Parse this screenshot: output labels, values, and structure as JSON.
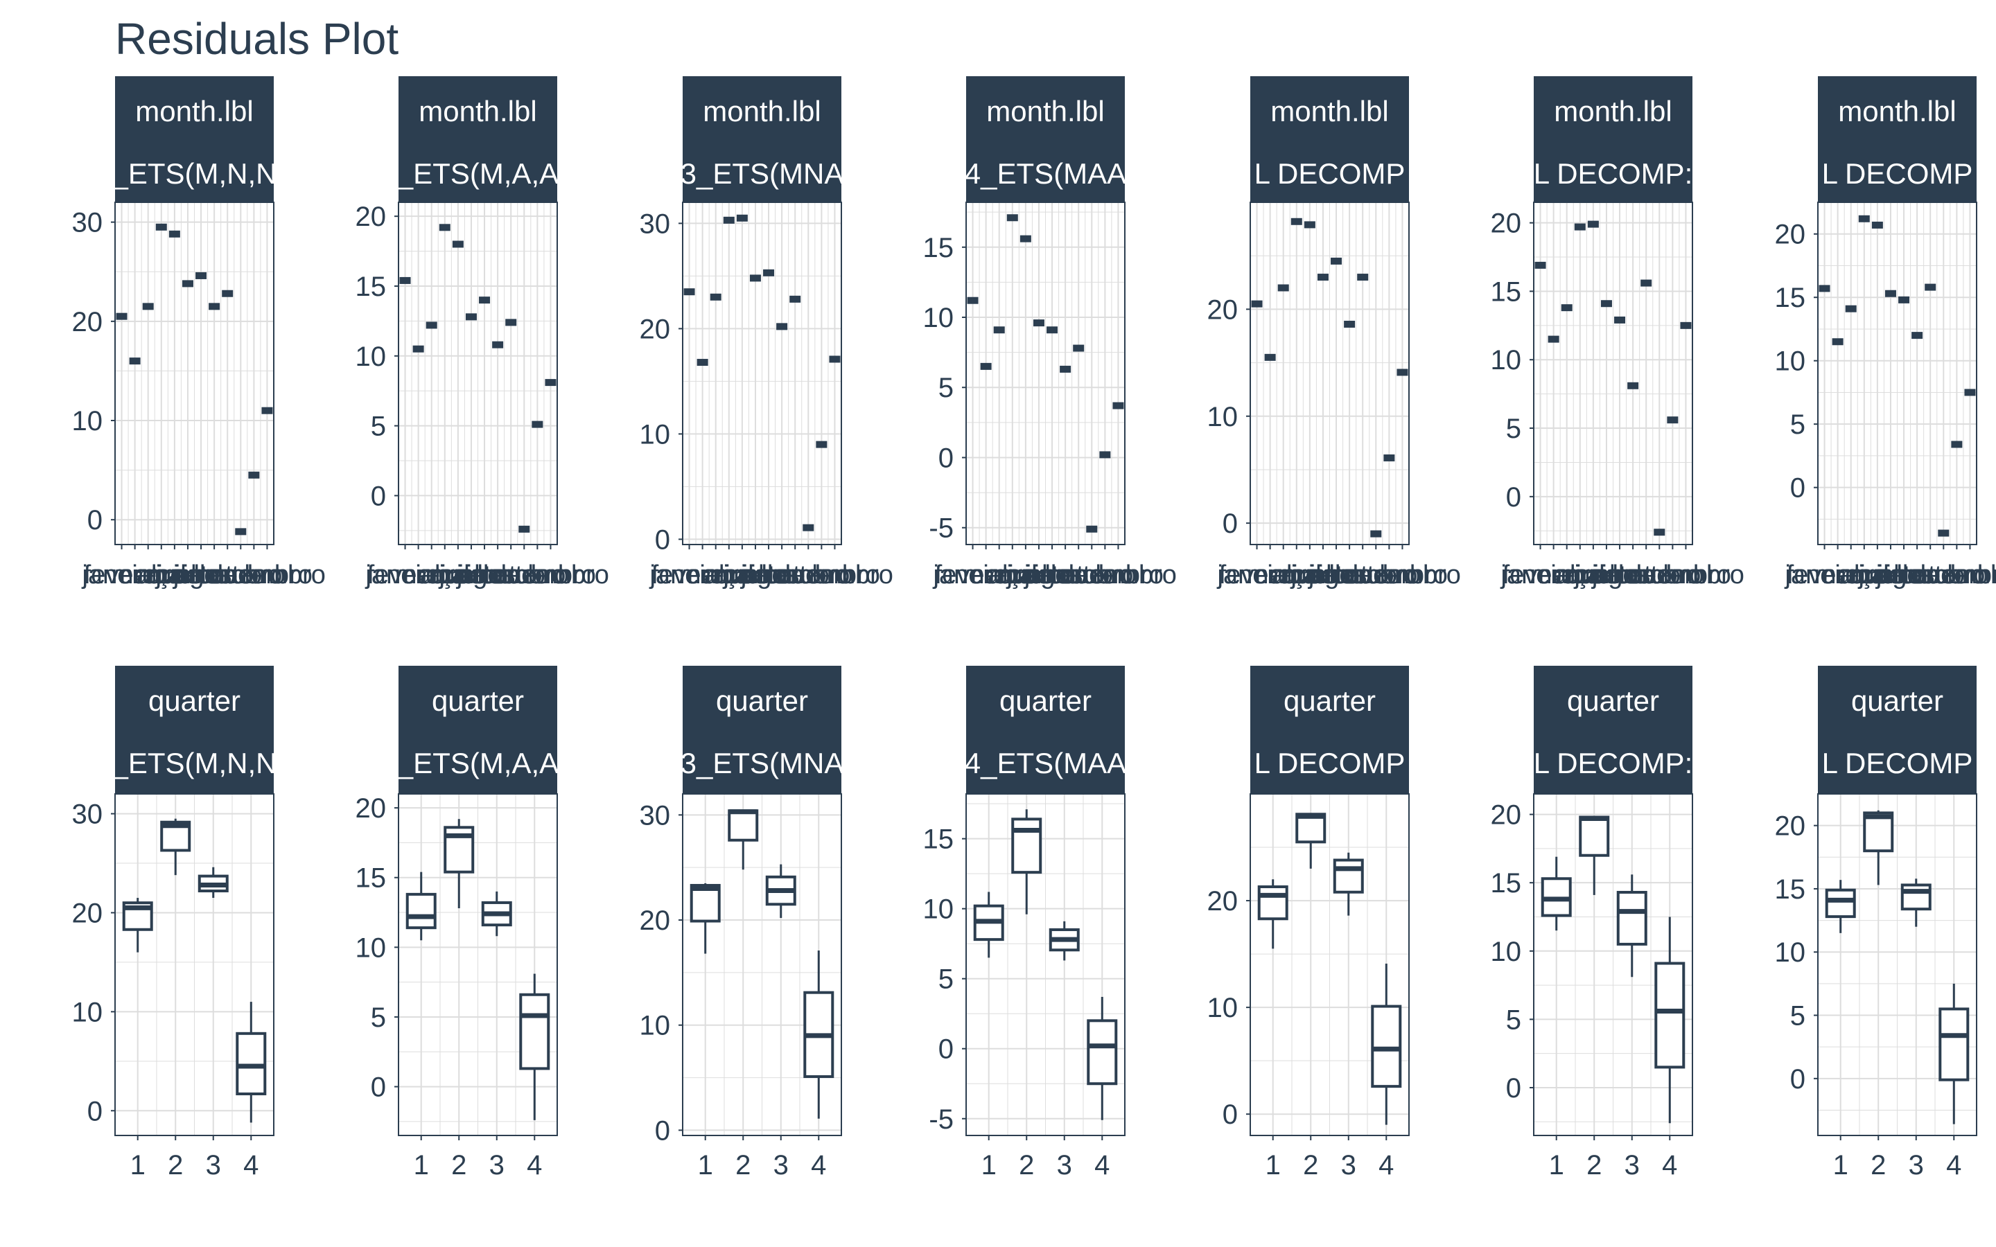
{
  "title": "Residuals Plot",
  "colors": {
    "strip_bg": "#2c3e50",
    "strip_text": "#ffffff",
    "ink": "#2c3e50",
    "grid": "#dddddd",
    "axis_text": "#2c3e50"
  },
  "chart_data": [
    {
      "type": "scatter",
      "row": 0,
      "col": 0,
      "strip": [
        "month.lbl",
        "_ETS(M,N,N"
      ],
      "xtick_labels": [
        "janeiro",
        "fevereiro",
        "março",
        "abril",
        "maio",
        "junho",
        "julho",
        "agosto",
        "setembro",
        "outubro",
        "novembro",
        "dezembro"
      ],
      "yticks": [
        0,
        10,
        20,
        30
      ],
      "ylim": [
        -2.5,
        32
      ],
      "x": [
        1,
        2,
        3,
        4,
        5,
        6,
        7,
        8,
        9,
        10,
        11,
        12
      ],
      "y": [
        20.5,
        16.0,
        21.5,
        29.5,
        28.8,
        23.8,
        24.6,
        21.5,
        22.8,
        -1.2,
        4.5,
        11.0
      ]
    },
    {
      "type": "scatter",
      "row": 0,
      "col": 1,
      "strip": [
        "month.lbl",
        "_ETS(M,A,A"
      ],
      "xtick_labels": [
        "janeiro",
        "fevereiro",
        "março",
        "abril",
        "maio",
        "junho",
        "julho",
        "agosto",
        "setembro",
        "outubro",
        "novembro",
        "dezembro"
      ],
      "yticks": [
        0,
        5,
        10,
        15,
        20
      ],
      "ylim": [
        -3.5,
        21
      ],
      "x": [
        1,
        2,
        3,
        4,
        5,
        6,
        7,
        8,
        9,
        10,
        11,
        12
      ],
      "y": [
        15.4,
        10.5,
        12.2,
        19.2,
        18.0,
        12.8,
        14.0,
        10.8,
        12.4,
        -2.4,
        5.1,
        8.1
      ]
    },
    {
      "type": "scatter",
      "row": 0,
      "col": 2,
      "strip": [
        "month.lbl",
        "3_ETS(MNA"
      ],
      "xtick_labels": [
        "janeiro",
        "fevereiro",
        "março",
        "abril",
        "maio",
        "junho",
        "julho",
        "agosto",
        "setembro",
        "outubro",
        "novembro",
        "dezembro"
      ],
      "yticks": [
        0,
        10,
        20,
        30
      ],
      "ylim": [
        -0.5,
        32
      ],
      "x": [
        1,
        2,
        3,
        4,
        5,
        6,
        7,
        8,
        9,
        10,
        11,
        12
      ],
      "y": [
        23.5,
        16.8,
        23.0,
        30.3,
        30.5,
        24.8,
        25.3,
        20.2,
        22.8,
        1.1,
        9.0,
        17.1
      ]
    },
    {
      "type": "scatter",
      "row": 0,
      "col": 3,
      "strip": [
        "month.lbl",
        "4_ETS(MAA"
      ],
      "xtick_labels": [
        "janeiro",
        "fevereiro",
        "março",
        "abril",
        "maio",
        "junho",
        "julho",
        "agosto",
        "setembro",
        "outubro",
        "novembro",
        "dezembro"
      ],
      "yticks": [
        -5,
        0,
        5,
        10,
        15
      ],
      "ylim": [
        -6.2,
        18.2
      ],
      "x": [
        1,
        2,
        3,
        4,
        5,
        6,
        7,
        8,
        9,
        10,
        11,
        12
      ],
      "y": [
        11.2,
        6.5,
        9.1,
        17.1,
        15.6,
        9.6,
        9.1,
        6.3,
        7.8,
        -5.1,
        0.2,
        3.7
      ]
    },
    {
      "type": "scatter",
      "row": 0,
      "col": 4,
      "strip": [
        "month.lbl",
        "L DECOMP"
      ],
      "xtick_labels": [
        "janeiro",
        "fevereiro",
        "março",
        "abril",
        "maio",
        "junho",
        "julho",
        "agosto",
        "setembro",
        "outubro",
        "novembro",
        "dezembro"
      ],
      "yticks": [
        0,
        10,
        20
      ],
      "ylim": [
        -2,
        30
      ],
      "x": [
        1,
        2,
        3,
        4,
        5,
        6,
        7,
        8,
        9,
        10,
        11,
        12
      ],
      "y": [
        20.5,
        15.5,
        22.0,
        28.2,
        27.9,
        23.0,
        24.5,
        18.6,
        23.0,
        -1.0,
        6.1,
        14.1
      ]
    },
    {
      "type": "scatter",
      "row": 0,
      "col": 5,
      "strip": [
        "month.lbl",
        "L DECOMP:"
      ],
      "xtick_labels": [
        "janeiro",
        "fevereiro",
        "março",
        "abril",
        "maio",
        "junho",
        "julho",
        "agosto",
        "setembro",
        "outubro",
        "novembro",
        "dezembro"
      ],
      "yticks": [
        0,
        5,
        10,
        15,
        20
      ],
      "ylim": [
        -3.5,
        21.5
      ],
      "x": [
        1,
        2,
        3,
        4,
        5,
        6,
        7,
        8,
        9,
        10,
        11,
        12
      ],
      "y": [
        16.9,
        11.5,
        13.8,
        19.7,
        19.9,
        14.1,
        12.9,
        8.1,
        15.6,
        -2.6,
        5.6,
        12.5
      ]
    },
    {
      "type": "scatter",
      "row": 0,
      "col": 6,
      "strip": [
        "month.lbl",
        "L DECOMP"
      ],
      "xtick_labels": [
        "janeiro",
        "fevereiro",
        "março",
        "abril",
        "maio",
        "junho",
        "julho",
        "agosto",
        "setembro",
        "outubro",
        "novembro",
        "dezembro"
      ],
      "yticks": [
        0,
        5,
        10,
        15,
        20
      ],
      "ylim": [
        -4.5,
        22.5
      ],
      "x": [
        1,
        2,
        3,
        4,
        5,
        6,
        7,
        8,
        9,
        10,
        11,
        12
      ],
      "y": [
        15.7,
        11.5,
        14.1,
        21.2,
        20.7,
        15.3,
        14.8,
        12.0,
        15.8,
        -3.6,
        3.4,
        7.5
      ]
    },
    {
      "type": "box",
      "row": 1,
      "col": 0,
      "strip": [
        "quarter",
        "_ETS(M,N,N"
      ],
      "categories": [
        "1",
        "2",
        "3",
        "4"
      ],
      "yticks": [
        0,
        10,
        20,
        30
      ],
      "ylim": [
        -2.5,
        32
      ],
      "boxes": [
        {
          "min": 16.0,
          "q1": 18.3,
          "median": 20.5,
          "q3": 21.0,
          "max": 21.5
        },
        {
          "min": 23.8,
          "q1": 26.3,
          "median": 28.8,
          "q3": 29.15,
          "max": 29.5
        },
        {
          "min": 21.5,
          "q1": 22.2,
          "median": 22.8,
          "q3": 23.7,
          "max": 24.6
        },
        {
          "min": -1.2,
          "q1": 1.7,
          "median": 4.5,
          "q3": 7.8,
          "max": 11.0
        }
      ]
    },
    {
      "type": "box",
      "row": 1,
      "col": 1,
      "strip": [
        "quarter",
        "_ETS(M,A,A"
      ],
      "categories": [
        "1",
        "2",
        "3",
        "4"
      ],
      "yticks": [
        0,
        5,
        10,
        15,
        20
      ],
      "ylim": [
        -3.5,
        21
      ],
      "boxes": [
        {
          "min": 10.5,
          "q1": 11.4,
          "median": 12.2,
          "q3": 13.8,
          "max": 15.4
        },
        {
          "min": 12.8,
          "q1": 15.4,
          "median": 18.0,
          "q3": 18.6,
          "max": 19.2
        },
        {
          "min": 10.8,
          "q1": 11.6,
          "median": 12.4,
          "q3": 13.2,
          "max": 14.0
        },
        {
          "min": -2.4,
          "q1": 1.3,
          "median": 5.1,
          "q3": 6.6,
          "max": 8.1
        }
      ]
    },
    {
      "type": "box",
      "row": 1,
      "col": 2,
      "strip": [
        "quarter",
        "3_ETS(MNA"
      ],
      "categories": [
        "1",
        "2",
        "3",
        "4"
      ],
      "yticks": [
        0,
        10,
        20,
        30
      ],
      "ylim": [
        -0.5,
        32
      ],
      "boxes": [
        {
          "min": 16.8,
          "q1": 19.9,
          "median": 23.0,
          "q3": 23.3,
          "max": 23.5
        },
        {
          "min": 24.8,
          "q1": 27.6,
          "median": 30.3,
          "q3": 30.4,
          "max": 30.5
        },
        {
          "min": 20.2,
          "q1": 21.5,
          "median": 22.8,
          "q3": 24.1,
          "max": 25.3
        },
        {
          "min": 1.1,
          "q1": 5.1,
          "median": 9.0,
          "q3": 13.1,
          "max": 17.1
        }
      ]
    },
    {
      "type": "box",
      "row": 1,
      "col": 3,
      "strip": [
        "quarter",
        "4_ETS(MAA"
      ],
      "categories": [
        "1",
        "2",
        "3",
        "4"
      ],
      "yticks": [
        -5,
        0,
        5,
        10,
        15
      ],
      "ylim": [
        -6.2,
        18.2
      ],
      "boxes": [
        {
          "min": 6.5,
          "q1": 7.8,
          "median": 9.1,
          "q3": 10.2,
          "max": 11.2
        },
        {
          "min": 9.6,
          "q1": 12.6,
          "median": 15.6,
          "q3": 16.4,
          "max": 17.1
        },
        {
          "min": 6.3,
          "q1": 7.05,
          "median": 7.8,
          "q3": 8.5,
          "max": 9.1
        },
        {
          "min": -5.1,
          "q1": -2.5,
          "median": 0.2,
          "q3": 2.0,
          "max": 3.7
        }
      ]
    },
    {
      "type": "box",
      "row": 1,
      "col": 4,
      "strip": [
        "quarter",
        "L DECOMP"
      ],
      "categories": [
        "1",
        "2",
        "3",
        "4"
      ],
      "yticks": [
        0,
        10,
        20
      ],
      "ylim": [
        -2,
        30
      ],
      "boxes": [
        {
          "min": 15.5,
          "q1": 18.3,
          "median": 20.5,
          "q3": 21.3,
          "max": 22.0
        },
        {
          "min": 23.0,
          "q1": 25.5,
          "median": 27.9,
          "q3": 28.1,
          "max": 28.2
        },
        {
          "min": 18.6,
          "q1": 20.8,
          "median": 23.0,
          "q3": 23.8,
          "max": 24.5
        },
        {
          "min": -1.0,
          "q1": 2.6,
          "median": 6.1,
          "q3": 10.1,
          "max": 14.1
        }
      ]
    },
    {
      "type": "box",
      "row": 1,
      "col": 5,
      "strip": [
        "quarter",
        "L DECOMP:"
      ],
      "categories": [
        "1",
        "2",
        "3",
        "4"
      ],
      "yticks": [
        0,
        5,
        10,
        15,
        20
      ],
      "ylim": [
        -3.5,
        21.5
      ],
      "boxes": [
        {
          "min": 11.5,
          "q1": 12.6,
          "median": 13.8,
          "q3": 15.3,
          "max": 16.9
        },
        {
          "min": 14.1,
          "q1": 17.0,
          "median": 19.7,
          "q3": 19.8,
          "max": 19.9
        },
        {
          "min": 8.1,
          "q1": 10.5,
          "median": 12.9,
          "q3": 14.3,
          "max": 15.6
        },
        {
          "min": -2.6,
          "q1": 1.5,
          "median": 5.6,
          "q3": 9.1,
          "max": 12.5
        }
      ]
    },
    {
      "type": "box",
      "row": 1,
      "col": 6,
      "strip": [
        "quarter",
        "L DECOMP"
      ],
      "categories": [
        "1",
        "2",
        "3",
        "4"
      ],
      "yticks": [
        0,
        5,
        10,
        15,
        20
      ],
      "ylim": [
        -4.5,
        22.5
      ],
      "boxes": [
        {
          "min": 11.5,
          "q1": 12.8,
          "median": 14.1,
          "q3": 14.9,
          "max": 15.7
        },
        {
          "min": 15.3,
          "q1": 18.0,
          "median": 20.7,
          "q3": 21.0,
          "max": 21.2
        },
        {
          "min": 12.0,
          "q1": 13.4,
          "median": 14.8,
          "q3": 15.3,
          "max": 15.8
        },
        {
          "min": -3.6,
          "q1": -0.1,
          "median": 3.4,
          "q3": 5.5,
          "max": 7.5
        }
      ]
    }
  ]
}
